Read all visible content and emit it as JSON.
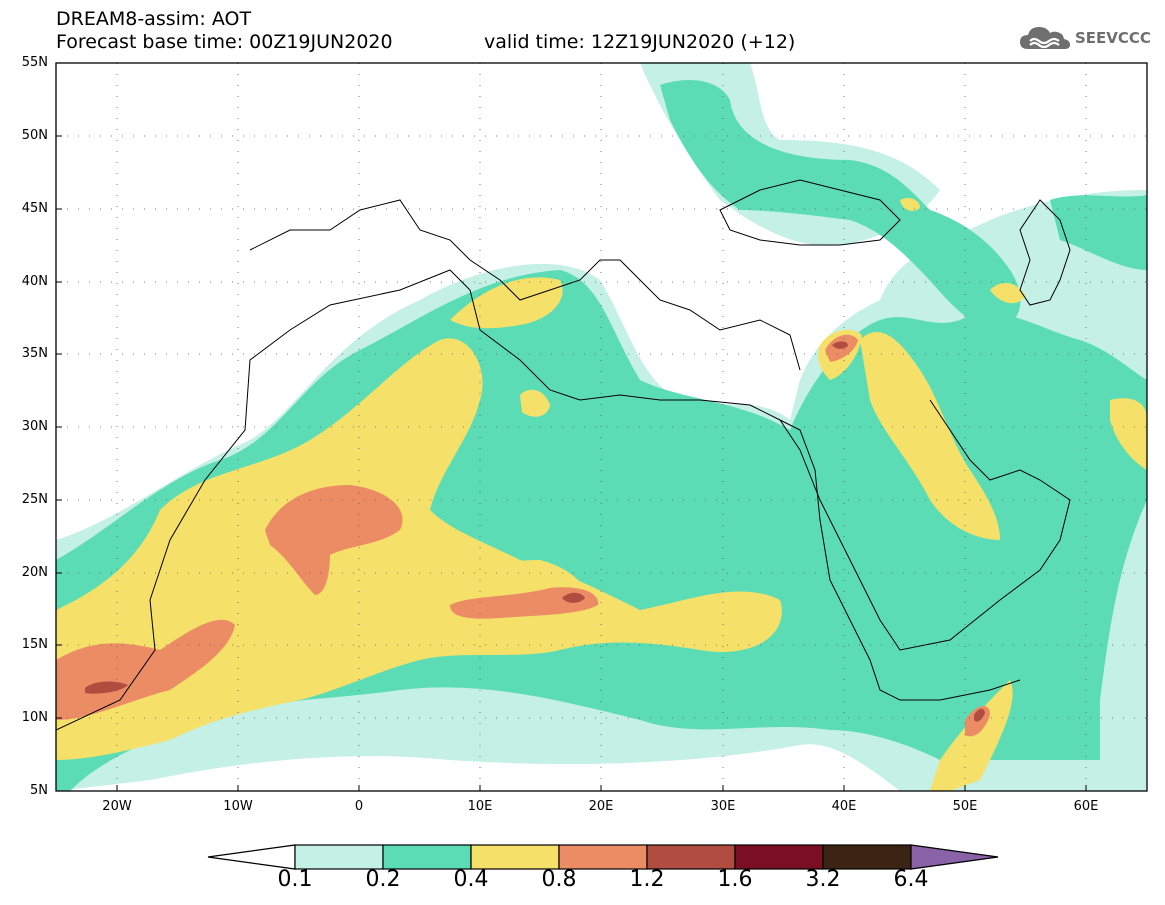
{
  "header": {
    "title": "DREAM8-assim: AOT",
    "base_time": "Forecast base time: 00Z19JUN2020",
    "valid_time": "valid time: 12Z19JUN2020 (+12)"
  },
  "logo": {
    "icon": "cloud-logo-icon",
    "text": "SEEVCCC"
  },
  "map": {
    "lat_ticks": [
      "55N",
      "50N",
      "45N",
      "40N",
      "35N",
      "30N",
      "25N",
      "20N",
      "15N",
      "10N",
      "5N"
    ],
    "lon_ticks": [
      "20W",
      "10W",
      "0",
      "10E",
      "20E",
      "30E",
      "40E",
      "50E",
      "60E"
    ],
    "lon_range": [
      -25,
      65
    ],
    "lat_range": [
      5,
      55
    ],
    "variable": "AOT"
  },
  "colorbar": {
    "labels": [
      "0.1",
      "0.2",
      "0.4",
      "0.8",
      "1.2",
      "1.6",
      "3.2",
      "6.4"
    ],
    "colors": [
      "#ffffff",
      "#c4f0e6",
      "#5cdcb4",
      "#f5e16a",
      "#ec8c64",
      "#b04c40",
      "#7a0e22",
      "#3c2414",
      "#8a62a8"
    ]
  }
}
